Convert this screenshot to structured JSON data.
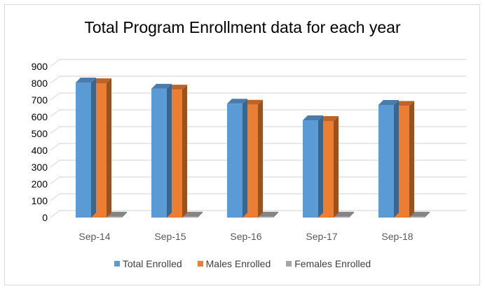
{
  "chart_data": {
    "type": "bar",
    "title": "Total Program Enrollment data for each year",
    "categories": [
      "Sep-14",
      "Sep-15",
      "Sep-16",
      "Sep-17",
      "Sep-18"
    ],
    "series": [
      {
        "name": "Total Enrolled",
        "values": [
          804,
          767,
          678,
          579,
          671
        ],
        "color": "#5b9bd5"
      },
      {
        "name": "Males Enrolled",
        "values": [
          800,
          762,
          672,
          575,
          665
        ],
        "color": "#ed7d31"
      },
      {
        "name": "Females Enrolled",
        "values": [
          5,
          5,
          5,
          5,
          5
        ],
        "color": "#a5a5a5"
      }
    ],
    "yticks": [
      "0",
      "100",
      "200",
      "300",
      "400",
      "500",
      "600",
      "700",
      "800",
      "900"
    ],
    "ylim": [
      0,
      900
    ],
    "grid": true,
    "legend": "bottom",
    "style": "3d-column"
  }
}
